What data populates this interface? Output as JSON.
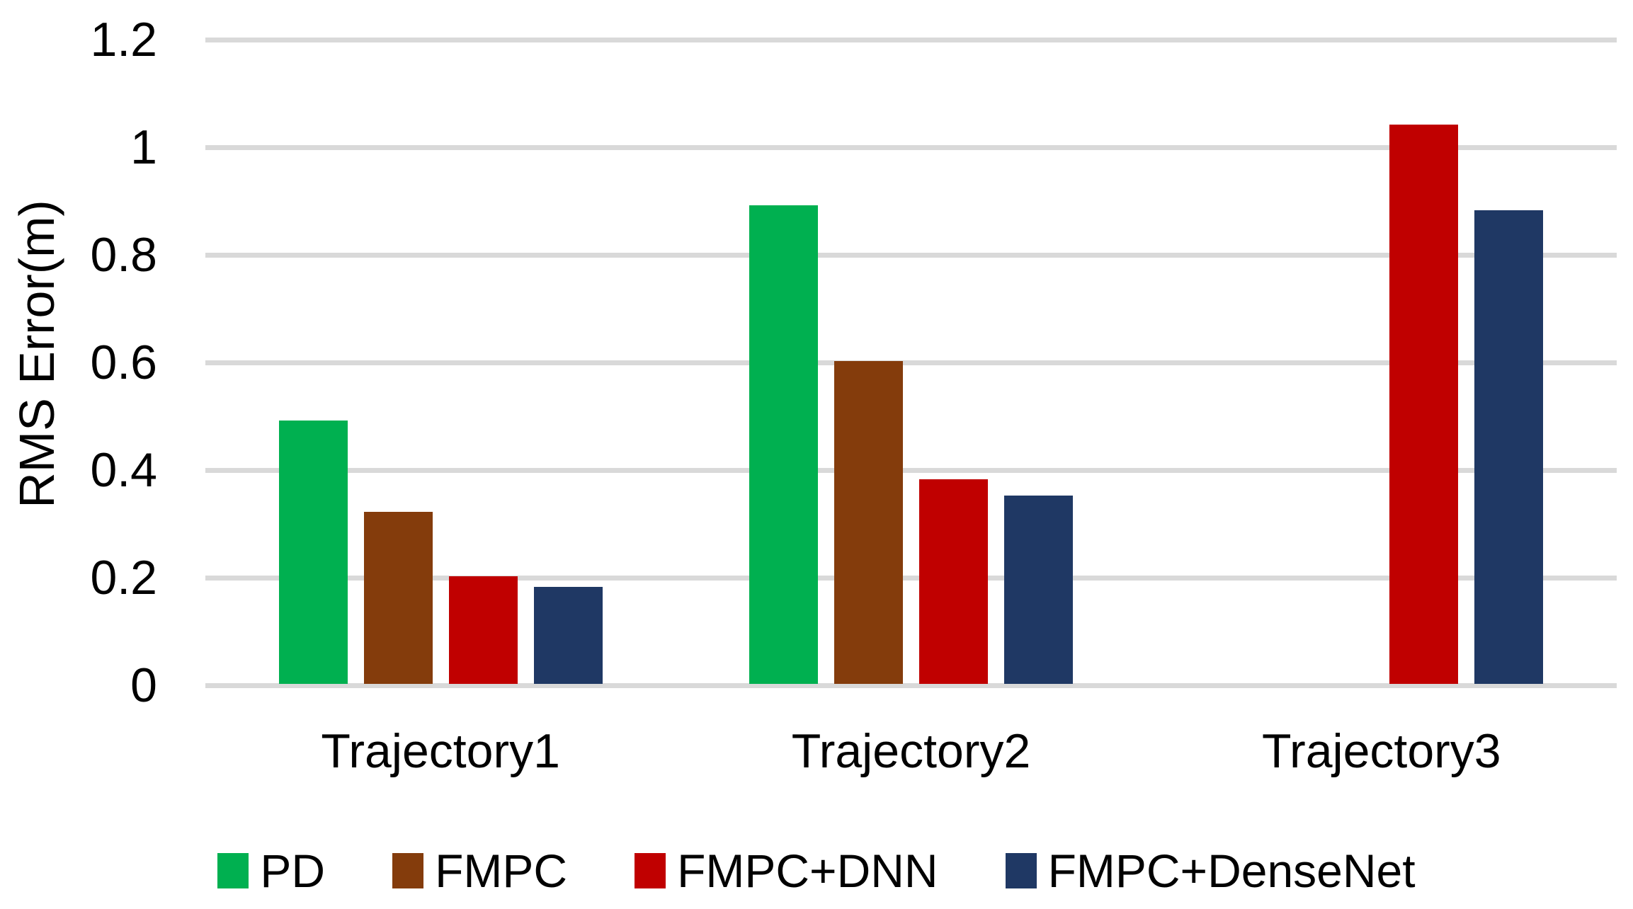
{
  "chart_data": {
    "type": "bar",
    "title": "",
    "xlabel": "",
    "ylabel": "RMS Error(m)",
    "ylim": [
      0,
      1.2
    ],
    "grid": {
      "horizontal": true,
      "color": "#D9D9D9"
    },
    "background": "#FFFFFF",
    "text_color": "#000000",
    "legend_position": "bottom",
    "categories": [
      "Trajectory1",
      "Trajectory2",
      "Trajectory3"
    ],
    "series": [
      {
        "name": "PD",
        "color": "#00B050",
        "values": [
          0.49,
          0.89,
          null
        ]
      },
      {
        "name": "FMPC",
        "color": "#843C0C",
        "values": [
          0.32,
          0.6,
          null
        ]
      },
      {
        "name": "FMPC+DNN",
        "color": "#C00000",
        "values": [
          0.2,
          0.38,
          1.04
        ]
      },
      {
        "name": "FMPC+DenseNet",
        "color": "#1F3864",
        "values": [
          0.18,
          0.35,
          0.88
        ]
      }
    ],
    "y_ticks": [
      {
        "value": 0,
        "label": "0"
      },
      {
        "value": 0.2,
        "label": "0.2"
      },
      {
        "value": 0.4,
        "label": "0.4"
      },
      {
        "value": 0.6,
        "label": "0.6"
      },
      {
        "value": 0.8,
        "label": "0.8"
      },
      {
        "value": 1,
        "label": "1"
      },
      {
        "value": 1.2,
        "label": "1.2"
      }
    ]
  }
}
